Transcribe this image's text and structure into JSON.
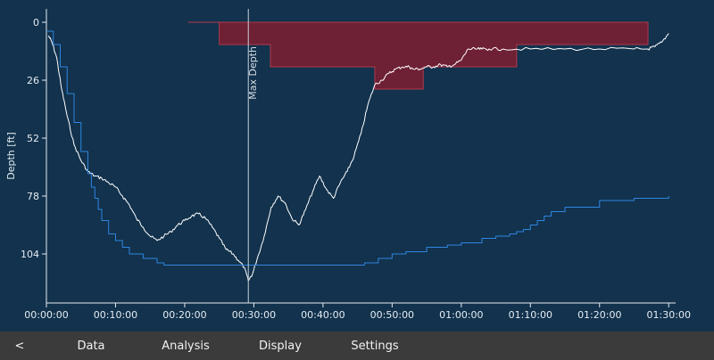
{
  "chart_data": {
    "type": "line",
    "ylabel": "Depth [ft]",
    "xlabel": "",
    "y_inverted": true,
    "ylim": [
      -6,
      126
    ],
    "xlim": [
      0,
      91
    ],
    "y_ticks": [
      "0",
      "26",
      "52",
      "78",
      "104"
    ],
    "y_tick_values": [
      0,
      26,
      52,
      78,
      104
    ],
    "x_ticks": [
      "00:00:00",
      "00:10:00",
      "00:20:00",
      "00:30:00",
      "00:40:00",
      "00:50:00",
      "01:00:00",
      "01:10:00",
      "01:20:00",
      "01:30:00"
    ],
    "x_tick_values": [
      0,
      10,
      20,
      30,
      40,
      50,
      60,
      70,
      80,
      90
    ],
    "marker": {
      "label": "Max Depth",
      "x": 29.2
    },
    "series": [
      {
        "color": "#ffffff",
        "x": [
          0.3,
          0.8,
          1.5,
          2.2,
          3,
          4,
          5,
          6,
          7,
          8,
          9,
          10,
          11,
          12,
          13,
          14,
          15,
          16,
          17,
          18,
          19,
          20,
          21,
          22,
          23,
          24,
          25,
          26,
          27,
          27.8,
          28.6,
          29.2,
          29.8,
          30.5,
          31.5,
          32.5,
          33.5,
          34.5,
          35.5,
          36.5,
          37.5,
          38.5,
          39.5,
          40.5,
          41.5,
          42.5,
          43.5,
          44.5,
          45.5,
          46.5,
          47.5,
          48.5,
          49.5,
          50.5,
          51.5,
          52.5,
          53,
          54,
          55,
          56,
          57,
          58,
          59,
          60,
          61,
          62,
          63,
          64,
          66,
          70,
          75,
          80,
          85,
          87,
          88,
          89,
          90
        ],
        "y": [
          6,
          9,
          16,
          30,
          42,
          55,
          62,
          67,
          69,
          70,
          72,
          74,
          78,
          82,
          88,
          92,
          96,
          98,
          96,
          94,
          91,
          89,
          87,
          86,
          88,
          92,
          97,
          102,
          104,
          107,
          110,
          116,
          113,
          106,
          96,
          83,
          78,
          81,
          88,
          91,
          84,
          76,
          69,
          75,
          79,
          72,
          67,
          60,
          50,
          37,
          28,
          26,
          23,
          21,
          20,
          20,
          21,
          21,
          20,
          20,
          19,
          20,
          19,
          17,
          12,
          12,
          12,
          12,
          12,
          12,
          12,
          12,
          12,
          12,
          11,
          9,
          5
        ],
        "noise": 0.7
      },
      {
        "color": "#2f86e0",
        "x": [
          0,
          1,
          2,
          3,
          4,
          5,
          6,
          6.5,
          7,
          7.5,
          8,
          9,
          10,
          11,
          12,
          14,
          16,
          17,
          20,
          25,
          30,
          35,
          40,
          45,
          46,
          48,
          50,
          52,
          55,
          58,
          60,
          63,
          65,
          67,
          68,
          69,
          70,
          71,
          72,
          73,
          75,
          80,
          85,
          90
        ],
        "y": [
          4,
          10,
          20,
          32,
          45,
          58,
          68,
          74,
          79,
          84,
          89,
          95,
          98,
          101,
          104,
          106,
          108,
          109,
          109,
          109,
          109,
          109,
          109,
          109,
          108,
          106,
          104,
          103,
          101,
          100,
          99,
          97,
          96,
          95,
          94,
          93,
          91,
          89,
          87,
          85,
          83,
          80,
          79,
          78
        ],
        "noise": 0,
        "step": true
      }
    ],
    "areas": [
      {
        "color": "#6e2034",
        "x": [
          20.5,
          25,
          32.4,
          47.5,
          51.5,
          54.5,
          61.5,
          68,
          80,
          87
        ],
        "y": [
          0,
          10,
          20,
          30,
          30,
          20,
          20,
          10,
          10,
          10
        ]
      }
    ]
  },
  "nav": {
    "back_label": "<",
    "tabs": [
      "Data",
      "Analysis",
      "Display",
      "Settings"
    ]
  }
}
